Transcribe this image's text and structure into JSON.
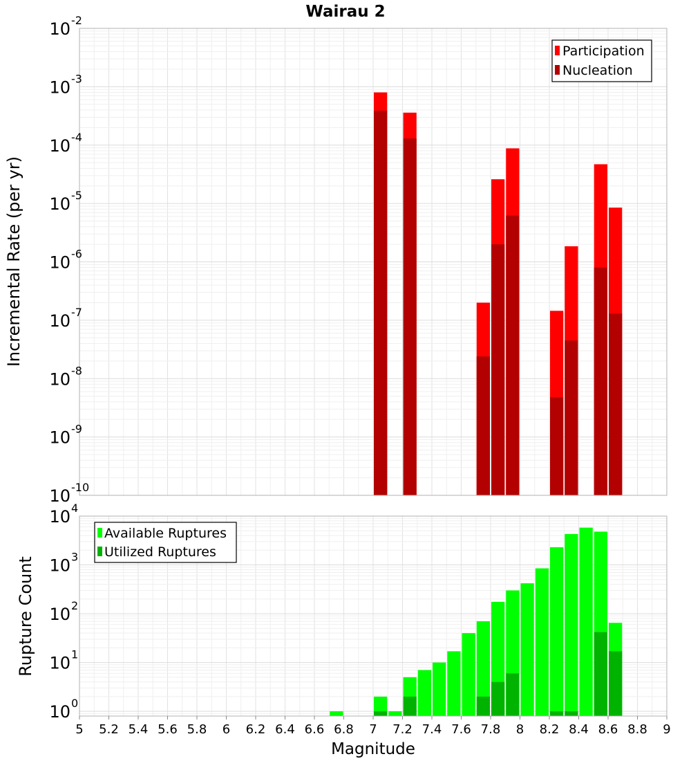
{
  "chart_data": {
    "title": "Wairau 2",
    "xlabel": "Magnitude",
    "xlim": [
      5,
      9
    ],
    "xticks": [
      "5",
      "5.2",
      "5.4",
      "5.6",
      "5.8",
      "6",
      "6.2",
      "6.4",
      "6.6",
      "6.8",
      "7",
      "7.2",
      "7.4",
      "7.6",
      "7.8",
      "8",
      "8.2",
      "8.4",
      "8.6",
      "8.8",
      "9"
    ],
    "bin_width": 0.1,
    "top": {
      "type": "bar",
      "ylabel": "Incremental Rate (per yr)",
      "yscale": "log",
      "ylim": [
        1e-10,
        0.01
      ],
      "ytick_exponents": [
        "-10",
        "-9",
        "-8",
        "-7",
        "-6",
        "-5",
        "-4",
        "-3",
        "-2"
      ],
      "legend_position": "top-right",
      "series": [
        {
          "name": "Participation",
          "color": "#ff0000",
          "points": [
            {
              "x": 7.05,
              "y": 0.0008
            },
            {
              "x": 7.25,
              "y": 0.00036
            },
            {
              "x": 7.75,
              "y": 2e-07
            },
            {
              "x": 7.85,
              "y": 2.6e-05
            },
            {
              "x": 7.95,
              "y": 8.8e-05
            },
            {
              "x": 8.25,
              "y": 1.45e-07
            },
            {
              "x": 8.35,
              "y": 1.85e-06
            },
            {
              "x": 8.55,
              "y": 4.7e-05
            },
            {
              "x": 8.65,
              "y": 8.5e-06
            }
          ]
        },
        {
          "name": "Nucleation",
          "color": "#b30000",
          "points": [
            {
              "x": 7.05,
              "y": 0.00039
            },
            {
              "x": 7.25,
              "y": 0.00013
            },
            {
              "x": 7.75,
              "y": 2.4e-08
            },
            {
              "x": 7.85,
              "y": 2e-06
            },
            {
              "x": 7.95,
              "y": 6.2e-06
            },
            {
              "x": 8.25,
              "y": 4.8e-09
            },
            {
              "x": 8.35,
              "y": 4.5e-08
            },
            {
              "x": 8.55,
              "y": 8e-07
            },
            {
              "x": 8.65,
              "y": 1.3e-07
            }
          ]
        }
      ]
    },
    "bottom": {
      "type": "bar",
      "ylabel": "Rupture Count",
      "yscale": "log",
      "ylim": [
        0.8,
        10000
      ],
      "ytick_exponents": [
        "0",
        "1",
        "2",
        "3",
        "4"
      ],
      "legend_position": "top-left",
      "series": [
        {
          "name": "Available Ruptures",
          "color": "#00ff00",
          "points": [
            {
              "x": 6.75,
              "y": 1
            },
            {
              "x": 7.05,
              "y": 2
            },
            {
              "x": 7.15,
              "y": 1
            },
            {
              "x": 7.25,
              "y": 5
            },
            {
              "x": 7.35,
              "y": 7
            },
            {
              "x": 7.45,
              "y": 10
            },
            {
              "x": 7.55,
              "y": 17
            },
            {
              "x": 7.65,
              "y": 40
            },
            {
              "x": 7.75,
              "y": 70
            },
            {
              "x": 7.85,
              "y": 175
            },
            {
              "x": 7.95,
              "y": 300
            },
            {
              "x": 8.05,
              "y": 420
            },
            {
              "x": 8.15,
              "y": 850
            },
            {
              "x": 8.25,
              "y": 2300
            },
            {
              "x": 8.35,
              "y": 4300
            },
            {
              "x": 8.45,
              "y": 5800
            },
            {
              "x": 8.55,
              "y": 4800
            },
            {
              "x": 8.65,
              "y": 65
            }
          ]
        },
        {
          "name": "Utilized Ruptures",
          "color": "#00b300",
          "points": [
            {
              "x": 7.05,
              "y": 1
            },
            {
              "x": 7.25,
              "y": 2
            },
            {
              "x": 7.75,
              "y": 2
            },
            {
              "x": 7.85,
              "y": 4
            },
            {
              "x": 7.95,
              "y": 6
            },
            {
              "x": 8.25,
              "y": 1
            },
            {
              "x": 8.35,
              "y": 1
            },
            {
              "x": 8.55,
              "y": 42
            },
            {
              "x": 8.65,
              "y": 17
            }
          ]
        }
      ]
    }
  }
}
